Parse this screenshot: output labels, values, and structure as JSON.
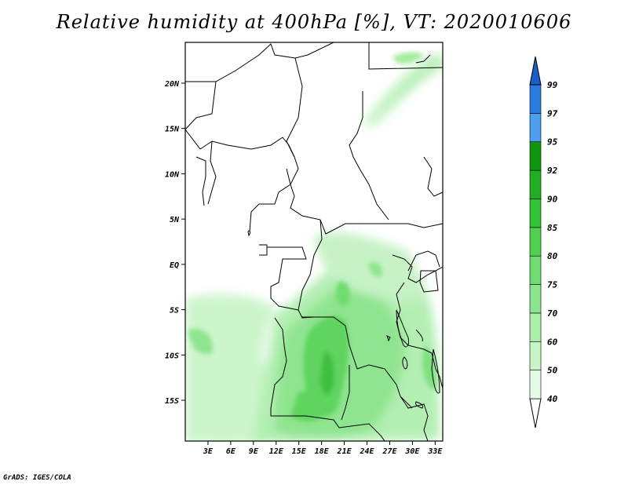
{
  "title": "Relative humidity at 400hPa [%], VT: 2020010606",
  "credit": "GrADS: IGES/COLA",
  "map": {
    "lat_labels": [
      "20N",
      "15N",
      "10N",
      "5N",
      "EQ",
      "5S",
      "10S",
      "15S"
    ],
    "lon_labels": [
      "3E",
      "6E",
      "9E",
      "12E",
      "15E",
      "18E",
      "21E",
      "24E",
      "27E",
      "30E",
      "33E"
    ],
    "lat_range": [
      -19.5,
      24.5
    ],
    "lon_range": [
      0,
      34
    ]
  },
  "colorbar": {
    "labels": [
      "40",
      "50",
      "60",
      "70",
      "75",
      "80",
      "85",
      "90",
      "92",
      "95",
      "97",
      "99"
    ],
    "colors": [
      "#ffffff",
      "#e6fbe6",
      "#c8f5c8",
      "#aaefaa",
      "#8ce48c",
      "#6edc6e",
      "#50d050",
      "#32c332",
      "#1fae1f",
      "#0f960f",
      "#4c9ef0",
      "#2b7ce0",
      "#1a5fc8",
      "#0d48b0"
    ]
  }
}
